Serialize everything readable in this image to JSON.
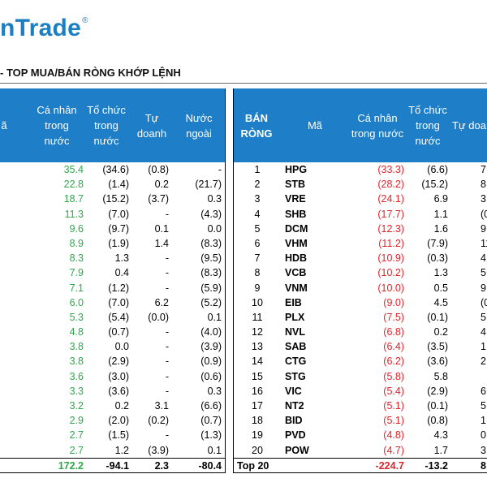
{
  "logo": {
    "text": "nTrade",
    "mark": "®"
  },
  "title": "- TOP MUA/BÁN RÒNG KHỚP LỆNH",
  "left_table": {
    "headers": {
      "ma": "ã",
      "individual": "Cá nhân\ntrong\nnước",
      "institution": "Tổ chức\ntrong\nnước",
      "proprietary": "Tự\ndoanh",
      "foreign": "Nước\nngoài"
    },
    "rows": [
      {
        "individual": "35.4",
        "institution": "(34.6)",
        "proprietary": "(0.8)",
        "foreign": "-"
      },
      {
        "individual": "22.8",
        "institution": "(1.4)",
        "proprietary": "0.2",
        "foreign": "(21.7)"
      },
      {
        "individual": "18.7",
        "institution": "(15.2)",
        "proprietary": "(3.7)",
        "foreign": "0.3"
      },
      {
        "individual": "11.3",
        "institution": "(7.0)",
        "proprietary": "-",
        "foreign": "(4.3)"
      },
      {
        "individual": "9.6",
        "institution": "(9.7)",
        "proprietary": "0.1",
        "foreign": "0.0"
      },
      {
        "individual": "8.9",
        "institution": "(1.9)",
        "proprietary": "1.4",
        "foreign": "(8.3)"
      },
      {
        "individual": "8.3",
        "institution": "1.3",
        "proprietary": "-",
        "foreign": "(9.5)"
      },
      {
        "individual": "7.9",
        "institution": "0.4",
        "proprietary": "-",
        "foreign": "(8.3)"
      },
      {
        "individual": "7.1",
        "institution": "(1.2)",
        "proprietary": "-",
        "foreign": "(5.9)"
      },
      {
        "individual": "6.0",
        "institution": "(7.0)",
        "proprietary": "6.2",
        "foreign": "(5.2)"
      },
      {
        "individual": "5.3",
        "institution": "(5.4)",
        "proprietary": "(0.0)",
        "foreign": "0.1"
      },
      {
        "individual": "4.8",
        "institution": "(0.7)",
        "proprietary": "-",
        "foreign": "(4.0)"
      },
      {
        "individual": "3.8",
        "institution": "0.0",
        "proprietary": "-",
        "foreign": "(3.9)"
      },
      {
        "individual": "3.8",
        "institution": "(2.9)",
        "proprietary": "-",
        "foreign": "(0.9)"
      },
      {
        "individual": "3.6",
        "institution": "(3.0)",
        "proprietary": "-",
        "foreign": "(0.6)"
      },
      {
        "individual": "3.3",
        "institution": "(3.6)",
        "proprietary": "-",
        "foreign": "0.3"
      },
      {
        "individual": "3.2",
        "institution": "0.2",
        "proprietary": "3.1",
        "foreign": "(6.6)"
      },
      {
        "individual": "2.9",
        "institution": "(2.0)",
        "proprietary": "(0.2)",
        "foreign": "(0.7)"
      },
      {
        "individual": "2.7",
        "institution": "(1.5)",
        "proprietary": "-",
        "foreign": "(1.3)"
      },
      {
        "individual": "2.7",
        "institution": "1.2",
        "proprietary": "(3.9)",
        "foreign": "0.1"
      }
    ],
    "total": {
      "individual": "172.2",
      "institution": "-94.1",
      "proprietary": "2.3",
      "foreign": "-80.4"
    }
  },
  "right_table": {
    "headers": {
      "rank": "BÁN\nRÒNG",
      "ma": "Mã",
      "individual": "Cá nhân\ntrong nước",
      "institution": "Tổ chức\ntrong\nnước",
      "proprietary": "Tự doa"
    },
    "rows": [
      {
        "rank": "1",
        "ma": "HPG",
        "individual": "(33.3)",
        "institution": "(6.6)",
        "proprietary": "7"
      },
      {
        "rank": "2",
        "ma": "STB",
        "individual": "(28.2)",
        "institution": "(15.2)",
        "proprietary": "8"
      },
      {
        "rank": "3",
        "ma": "VRE",
        "individual": "(24.1)",
        "institution": "6.9",
        "proprietary": "3"
      },
      {
        "rank": "4",
        "ma": "SHB",
        "individual": "(17.7)",
        "institution": "1.1",
        "proprietary": "(0"
      },
      {
        "rank": "5",
        "ma": "DCM",
        "individual": "(12.3)",
        "institution": "1.6",
        "proprietary": "9"
      },
      {
        "rank": "6",
        "ma": "VHM",
        "individual": "(11.2)",
        "institution": "(7.9)",
        "proprietary": "11"
      },
      {
        "rank": "7",
        "ma": "HDB",
        "individual": "(10.9)",
        "institution": "(0.3)",
        "proprietary": "4"
      },
      {
        "rank": "8",
        "ma": "VCB",
        "individual": "(10.2)",
        "institution": "1.3",
        "proprietary": "5"
      },
      {
        "rank": "9",
        "ma": "VNM",
        "individual": "(10.0)",
        "institution": "0.5",
        "proprietary": "9"
      },
      {
        "rank": "10",
        "ma": "EIB",
        "individual": "(9.0)",
        "institution": "4.5",
        "proprietary": "(0"
      },
      {
        "rank": "11",
        "ma": "PLX",
        "individual": "(7.5)",
        "institution": "(0.1)",
        "proprietary": "5"
      },
      {
        "rank": "12",
        "ma": "NVL",
        "individual": "(6.8)",
        "institution": "0.2",
        "proprietary": "4"
      },
      {
        "rank": "13",
        "ma": "SAB",
        "individual": "(6.4)",
        "institution": "(3.5)",
        "proprietary": "1"
      },
      {
        "rank": "14",
        "ma": "CTG",
        "individual": "(6.2)",
        "institution": "(3.6)",
        "proprietary": "2"
      },
      {
        "rank": "15",
        "ma": "STG",
        "individual": "(5.8)",
        "institution": "5.8",
        "proprietary": ""
      },
      {
        "rank": "16",
        "ma": "VIC",
        "individual": "(5.4)",
        "institution": "(2.9)",
        "proprietary": "6"
      },
      {
        "rank": "17",
        "ma": "NT2",
        "individual": "(5.1)",
        "institution": "(0.1)",
        "proprietary": "5"
      },
      {
        "rank": "18",
        "ma": "BID",
        "individual": "(5.1)",
        "institution": "(0.8)",
        "proprietary": "1"
      },
      {
        "rank": "19",
        "ma": "PVD",
        "individual": "(4.8)",
        "institution": "4.3",
        "proprietary": "0"
      },
      {
        "rank": "20",
        "ma": "POW",
        "individual": "(4.7)",
        "institution": "1.7",
        "proprietary": "3"
      }
    ],
    "total": {
      "label": "Top 20",
      "individual": "-224.7",
      "institution": "-13.2",
      "proprietary": "8"
    }
  },
  "colors": {
    "header_bg": "#1e7ec8",
    "logo": "#1b7fc4",
    "positive": "#2ea84a",
    "negative": "#e0242b"
  }
}
